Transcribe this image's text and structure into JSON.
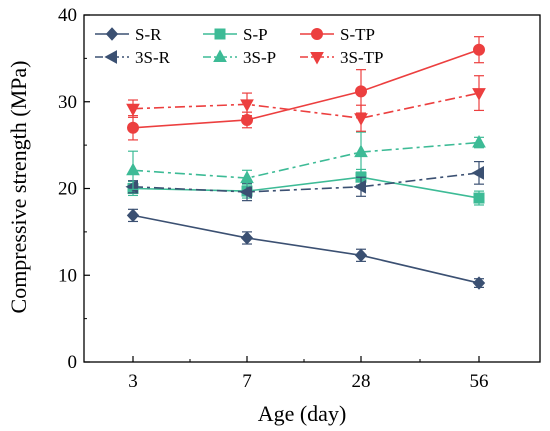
{
  "chart_data": {
    "type": "line",
    "title": "",
    "xlabel": "Age (day)",
    "ylabel": "Compressive strength (MPa)",
    "categories": [
      "3",
      "7",
      "28",
      "56"
    ],
    "ylim": [
      0,
      40
    ],
    "yticks": [
      0,
      10,
      20,
      30,
      40
    ],
    "legend_position": "top-left",
    "grid": false,
    "series": [
      {
        "name": "S-R",
        "color": "#3b5072",
        "line": "solid",
        "marker": "diamond",
        "values": [
          16.9,
          14.3,
          12.3,
          9.1
        ],
        "errors": [
          0.7,
          0.7,
          0.7,
          0.5
        ]
      },
      {
        "name": "S-P",
        "color": "#3dbb96",
        "line": "solid",
        "marker": "square",
        "values": [
          20.0,
          19.7,
          21.3,
          18.9
        ],
        "errors": [
          0.8,
          0.8,
          0.9,
          0.8
        ]
      },
      {
        "name": "S-TP",
        "color": "#ec3f3f",
        "line": "solid",
        "marker": "circle",
        "values": [
          27.0,
          27.9,
          31.2,
          36.0
        ],
        "errors": [
          1.4,
          0.9,
          2.5,
          1.5
        ]
      },
      {
        "name": "3S-R",
        "color": "#3b5072",
        "line": "dashdot",
        "marker": "triangle-left",
        "values": [
          20.2,
          19.6,
          20.2,
          21.8
        ],
        "errors": [
          0.7,
          1.0,
          1.1,
          1.3
        ]
      },
      {
        "name": "3S-P",
        "color": "#3dbb96",
        "line": "dashdot",
        "marker": "triangle-up",
        "values": [
          22.1,
          21.2,
          24.2,
          25.3
        ],
        "errors": [
          2.2,
          0.9,
          2.3,
          0.6
        ]
      },
      {
        "name": "3S-TP",
        "color": "#ec3f3f",
        "line": "dashdot",
        "marker": "triangle-down",
        "values": [
          29.2,
          29.7,
          28.1,
          31.0
        ],
        "errors": [
          1.0,
          1.3,
          1.5,
          2.0
        ]
      }
    ]
  }
}
